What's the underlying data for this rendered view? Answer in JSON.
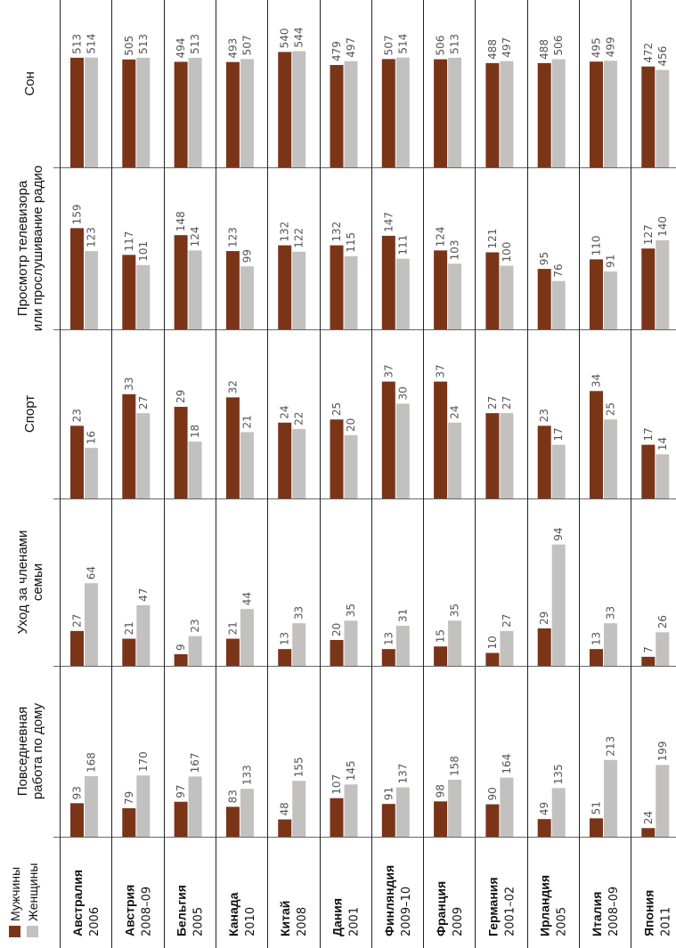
{
  "chart_data": {
    "type": "bar",
    "orientation": "rotated",
    "title": "",
    "legend": {
      "placement": "bottom-left",
      "entries": [
        {
          "name": "Мужчины",
          "color": "#7a3518"
        },
        {
          "name": "Женщины",
          "color": "#c3c0c0"
        }
      ]
    },
    "categories": [
      "Повседневная работа по дому",
      "Уход за членами семьи",
      "Спорт",
      "Просмотр телевизора или прослушивание радио",
      "Сон"
    ],
    "category_lines": [
      [
        "Повседневная",
        "работа по дому"
      ],
      [
        "Уход за членами",
        "семьи"
      ],
      [
        "Спорт"
      ],
      [
        "Просмотр телевизора",
        "или прослушивание радио"
      ],
      [
        "Сон"
      ]
    ],
    "countries": [
      {
        "name": "Австралия",
        "period": "2006",
        "men": [
          93,
          27,
          23,
          159,
          513
        ],
        "women": [
          168,
          64,
          16,
          123,
          514
        ]
      },
      {
        "name": "Австрия",
        "period": "2008–09",
        "men": [
          79,
          21,
          33,
          117,
          505
        ],
        "women": [
          170,
          47,
          27,
          101,
          513
        ]
      },
      {
        "name": "Бельгия",
        "period": "2005",
        "men": [
          97,
          9,
          29,
          148,
          494
        ],
        "women": [
          167,
          23,
          18,
          124,
          513
        ]
      },
      {
        "name": "Канада",
        "period": "2010",
        "men": [
          83,
          21,
          32,
          123,
          493
        ],
        "women": [
          133,
          44,
          21,
          99,
          507
        ]
      },
      {
        "name": "Китай",
        "period": "2008",
        "men": [
          48,
          13,
          24,
          132,
          540
        ],
        "women": [
          155,
          33,
          22,
          122,
          544
        ]
      },
      {
        "name": "Дания",
        "period": "2001",
        "men": [
          107,
          20,
          25,
          132,
          479
        ],
        "women": [
          145,
          35,
          20,
          115,
          497
        ]
      },
      {
        "name": "Финляндия",
        "period": "2009–10",
        "men": [
          91,
          13,
          37,
          147,
          507
        ],
        "women": [
          137,
          31,
          30,
          111,
          514
        ]
      },
      {
        "name": "Франция",
        "period": "2009",
        "men": [
          98,
          15,
          37,
          124,
          506
        ],
        "women": [
          158,
          35,
          24,
          103,
          513
        ]
      },
      {
        "name": "Германия",
        "period": "2001–02",
        "men": [
          90,
          10,
          27,
          121,
          488
        ],
        "women": [
          164,
          27,
          27,
          100,
          497
        ]
      },
      {
        "name": "Ирландия",
        "period": "2005",
        "men": [
          49,
          29,
          23,
          95,
          488
        ],
        "women": [
          135,
          94,
          17,
          76,
          506
        ]
      },
      {
        "name": "Италия",
        "period": "2008–09",
        "men": [
          51,
          13,
          34,
          110,
          495
        ],
        "women": [
          213,
          33,
          25,
          91,
          499
        ]
      },
      {
        "name": "Япония",
        "period": "2011",
        "men": [
          24,
          7,
          17,
          127,
          472
        ],
        "women": [
          199,
          26,
          14,
          140,
          456
        ]
      }
    ]
  }
}
